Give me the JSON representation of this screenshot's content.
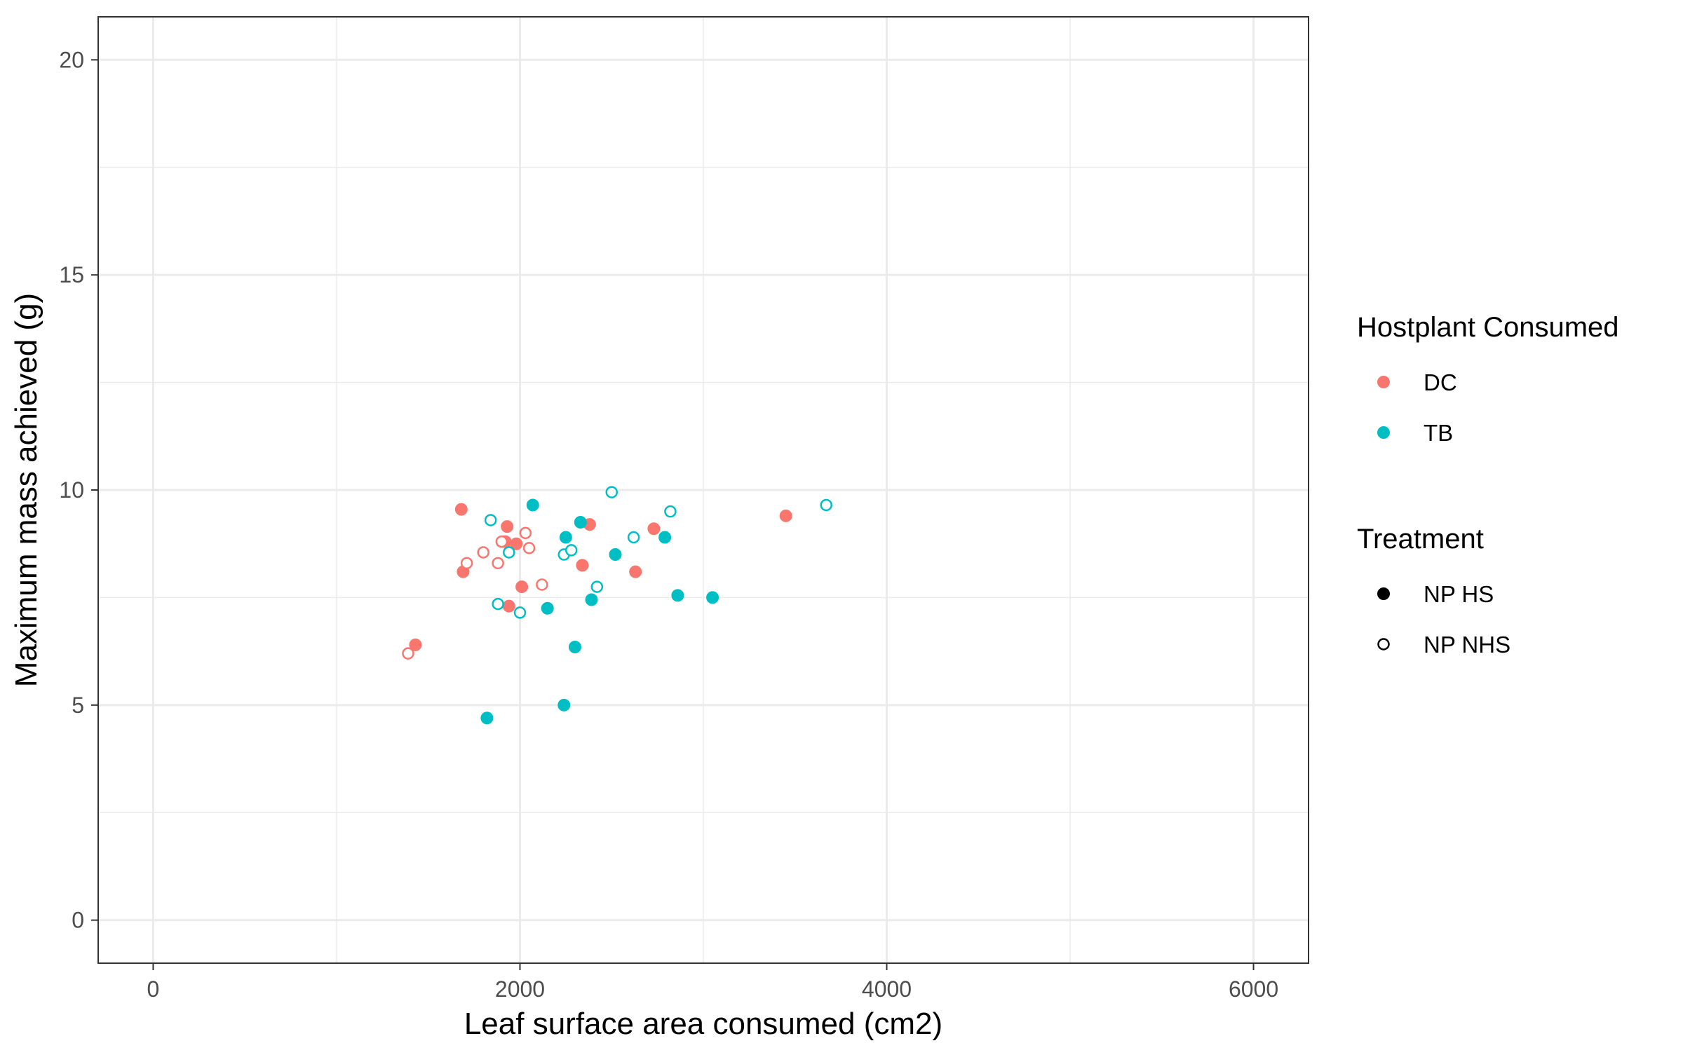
{
  "chart_data": {
    "type": "scatter",
    "xlabel": "Leaf surface area consumed (cm2)",
    "ylabel": "Maximum mass achieved (g)",
    "xlim": [
      -300,
      6300
    ],
    "ylim": [
      -1,
      21
    ],
    "x_ticks": [
      0,
      2000,
      4000,
      6000
    ],
    "x_tick_labels": [
      "0",
      "2000",
      "4000",
      "6000"
    ],
    "y_ticks": [
      0,
      5,
      10,
      15,
      20
    ],
    "y_tick_labels": [
      "0",
      "5",
      "10",
      "15",
      "20"
    ],
    "grid": true,
    "legend_position": "right",
    "legends": {
      "color": {
        "title": "Hostplant Consumed",
        "entries": [
          {
            "label": "DC",
            "color": "#F8766D"
          },
          {
            "label": "TB",
            "color": "#00BFC4"
          }
        ]
      },
      "shape": {
        "title": "Treatment",
        "entries": [
          {
            "label": "NP HS",
            "fill": "filled"
          },
          {
            "label": "NP NHS",
            "fill": "open"
          }
        ]
      }
    },
    "series": [
      {
        "host": "DC",
        "treatment": "NP HS",
        "color": "#F8766D",
        "fill": "filled",
        "points": [
          {
            "x": 1680,
            "y": 9.55
          },
          {
            "x": 1690,
            "y": 8.1
          },
          {
            "x": 1430,
            "y": 6.4
          },
          {
            "x": 1920,
            "y": 8.8
          },
          {
            "x": 1930,
            "y": 9.15
          },
          {
            "x": 1980,
            "y": 8.75
          },
          {
            "x": 2010,
            "y": 7.75
          },
          {
            "x": 1940,
            "y": 7.3
          },
          {
            "x": 2340,
            "y": 8.25
          },
          {
            "x": 2380,
            "y": 9.2
          },
          {
            "x": 2630,
            "y": 8.1
          },
          {
            "x": 2730,
            "y": 9.1
          },
          {
            "x": 3450,
            "y": 9.4
          }
        ]
      },
      {
        "host": "DC",
        "treatment": "NP NHS",
        "color": "#F8766D",
        "fill": "open",
        "points": [
          {
            "x": 1390,
            "y": 6.2
          },
          {
            "x": 1710,
            "y": 8.3
          },
          {
            "x": 1800,
            "y": 8.55
          },
          {
            "x": 1880,
            "y": 8.3
          },
          {
            "x": 1900,
            "y": 8.8
          },
          {
            "x": 2030,
            "y": 9.0
          },
          {
            "x": 2050,
            "y": 8.65
          },
          {
            "x": 2120,
            "y": 7.8
          }
        ]
      },
      {
        "host": "TB",
        "treatment": "NP HS",
        "color": "#00BFC4",
        "fill": "filled",
        "points": [
          {
            "x": 1820,
            "y": 4.7
          },
          {
            "x": 2070,
            "y": 9.65
          },
          {
            "x": 2150,
            "y": 7.25
          },
          {
            "x": 2240,
            "y": 5.0
          },
          {
            "x": 2250,
            "y": 8.9
          },
          {
            "x": 2300,
            "y": 6.35
          },
          {
            "x": 2330,
            "y": 9.25
          },
          {
            "x": 2390,
            "y": 7.45
          },
          {
            "x": 2520,
            "y": 8.5
          },
          {
            "x": 2790,
            "y": 8.9
          },
          {
            "x": 2860,
            "y": 7.55
          },
          {
            "x": 3050,
            "y": 7.5
          }
        ]
      },
      {
        "host": "TB",
        "treatment": "NP NHS",
        "color": "#00BFC4",
        "fill": "open",
        "points": [
          {
            "x": 1840,
            "y": 9.3
          },
          {
            "x": 1880,
            "y": 7.35
          },
          {
            "x": 1940,
            "y": 8.55
          },
          {
            "x": 2000,
            "y": 7.15
          },
          {
            "x": 2240,
            "y": 8.5
          },
          {
            "x": 2280,
            "y": 8.6
          },
          {
            "x": 2420,
            "y": 7.75
          },
          {
            "x": 2500,
            "y": 9.95
          },
          {
            "x": 2620,
            "y": 8.9
          },
          {
            "x": 2820,
            "y": 9.5
          },
          {
            "x": 3670,
            "y": 9.65
          }
        ]
      }
    ]
  }
}
